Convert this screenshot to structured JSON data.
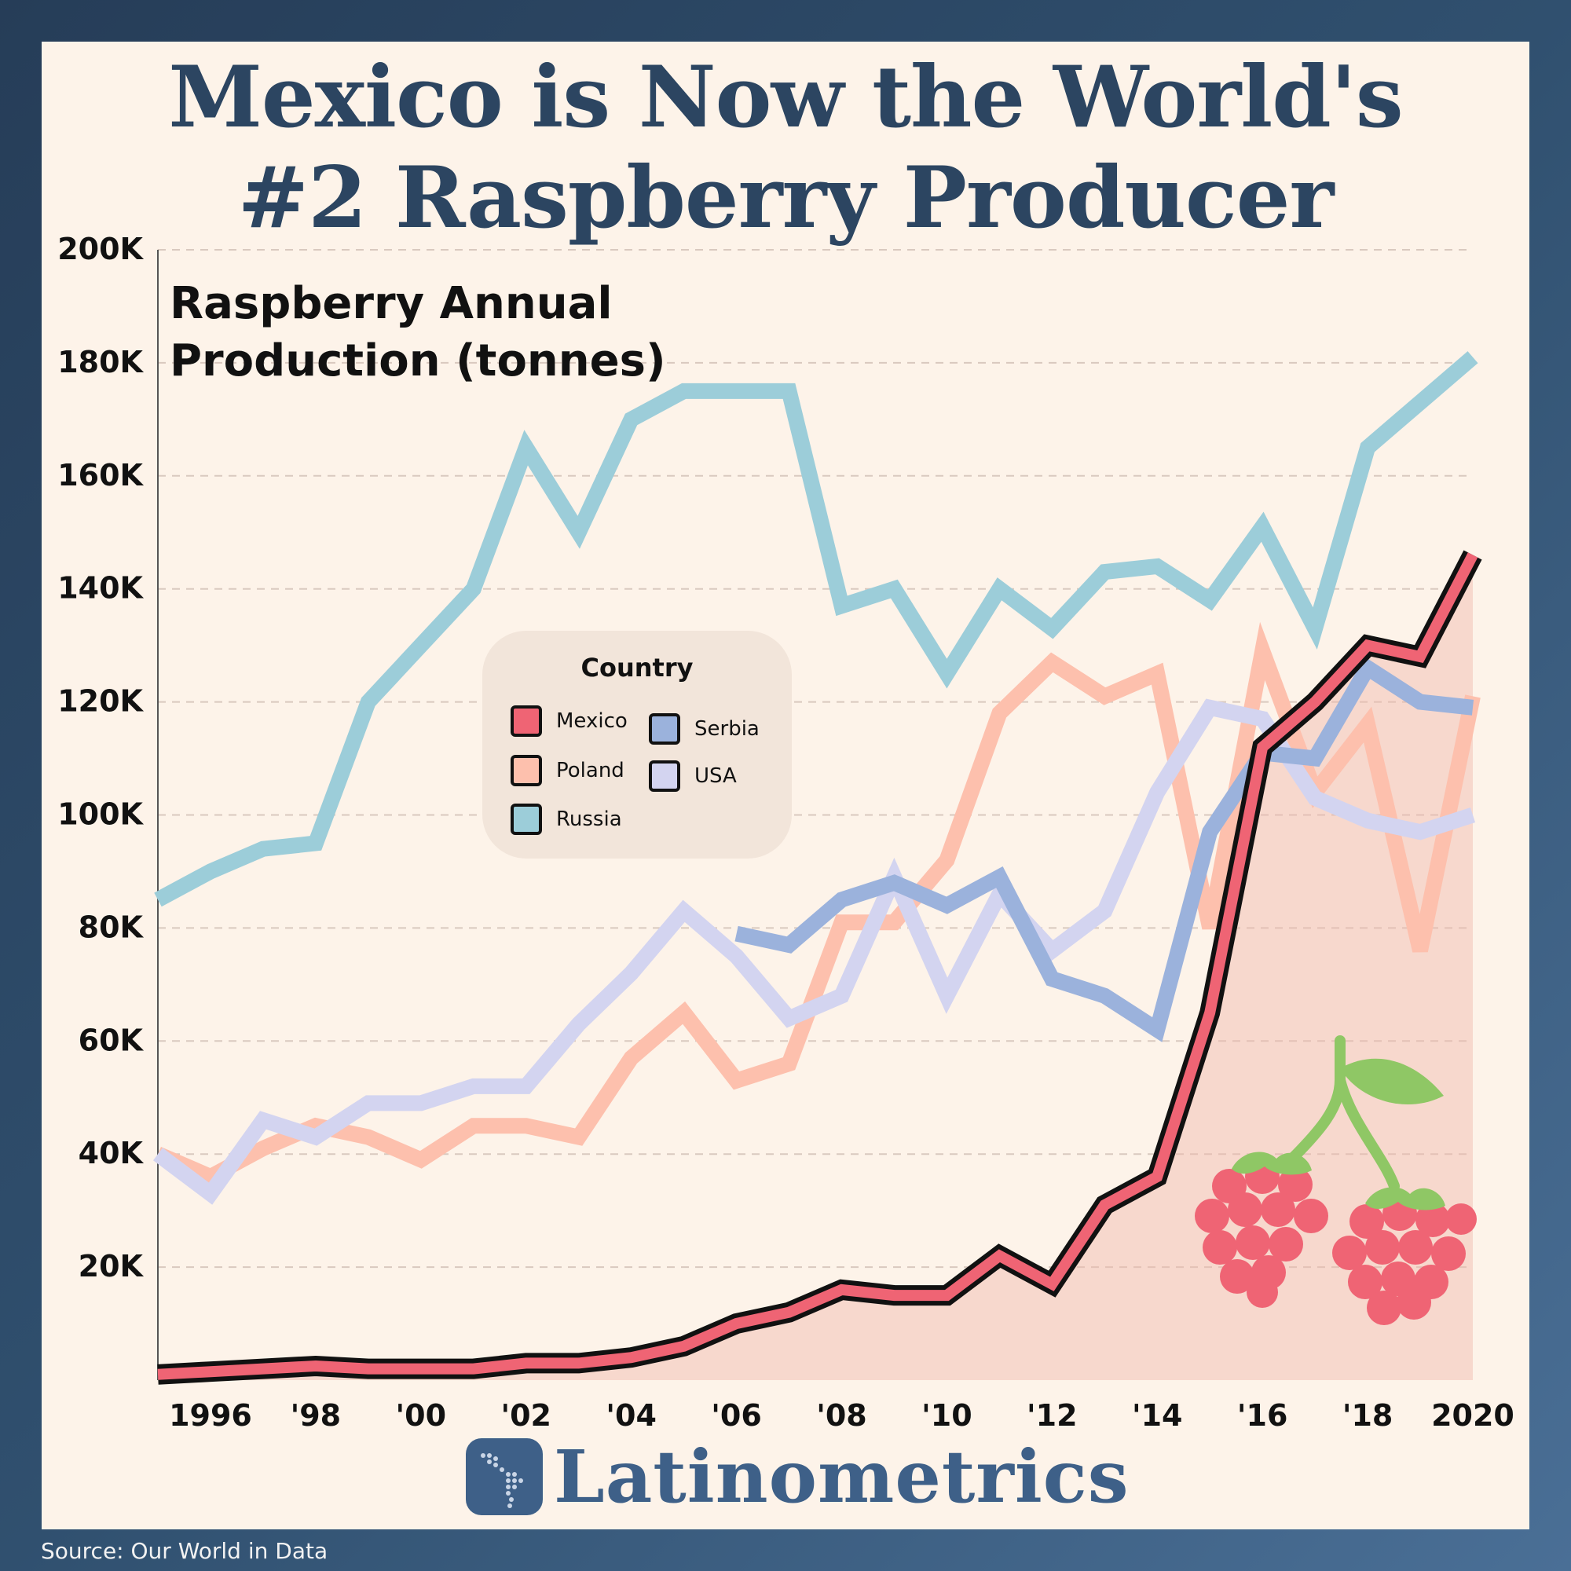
{
  "title_line1": "Mexico is Now the World's",
  "title_line2": "#2 Raspberry Producer",
  "brand": "Latinometrics",
  "source": "Source: Our World in Data",
  "chart_data": {
    "type": "line",
    "title": "Mexico is Now the World's #2 Raspberry Producer",
    "subtitle_line1": "Raspberry Annual",
    "subtitle_line2": "Production (tonnes)",
    "xlabel": "",
    "ylabel": "",
    "xlim": [
      1995,
      2020
    ],
    "ylim": [
      0,
      200000
    ],
    "grid": true,
    "y_ticks": [
      20000,
      40000,
      60000,
      80000,
      100000,
      120000,
      140000,
      160000,
      180000,
      200000
    ],
    "y_tick_labels": [
      "20K",
      "40K",
      "60K",
      "80K",
      "100K",
      "120K",
      "140K",
      "160K",
      "180K",
      "200K"
    ],
    "x_ticks": [
      1996,
      1998,
      2000,
      2002,
      2004,
      2006,
      2008,
      2010,
      2012,
      2014,
      2016,
      2018,
      2020
    ],
    "x_tick_labels": [
      "1996",
      "'98",
      "'00",
      "'02",
      "'04",
      "'06",
      "'08",
      "'10",
      "'12",
      "'14",
      "'16",
      "'18",
      "2020"
    ],
    "legend": {
      "title": "Country",
      "placement": "upper-center"
    },
    "series": [
      {
        "name": "Russia",
        "color": "#9ccdd9",
        "x": [
          1995,
          1996,
          1997,
          1998,
          1999,
          2000,
          2001,
          2002,
          2003,
          2004,
          2005,
          2006,
          2007,
          2008,
          2009,
          2010,
          2011,
          2012,
          2013,
          2014,
          2015,
          2016,
          2017,
          2018,
          2019,
          2020
        ],
        "y": [
          85000,
          90000,
          94000,
          95000,
          120000,
          130000,
          140000,
          165000,
          150000,
          170000,
          175000,
          175000,
          175000,
          137000,
          140000,
          125000,
          140000,
          133000,
          143000,
          144000,
          138000,
          151000,
          133000,
          165000,
          173000,
          181000
        ]
      },
      {
        "name": "Poland",
        "color": "#fdc0ad",
        "x": [
          1995,
          1996,
          1997,
          1998,
          1999,
          2000,
          2001,
          2002,
          2003,
          2004,
          2005,
          2006,
          2007,
          2008,
          2009,
          2010,
          2011,
          2012,
          2013,
          2014,
          2015,
          2016,
          2017,
          2018,
          2019,
          2020
        ],
        "y": [
          40000,
          36000,
          41000,
          45000,
          43000,
          39000,
          45000,
          45000,
          43000,
          57000,
          65000,
          53000,
          56000,
          81000,
          81000,
          92000,
          118000,
          127000,
          121000,
          125000,
          80000,
          129000,
          104000,
          116000,
          76000,
          121000
        ]
      },
      {
        "name": "USA",
        "color": "#d3d4f0",
        "x": [
          1995,
          1996,
          1997,
          1998,
          1999,
          2000,
          2001,
          2002,
          2003,
          2004,
          2005,
          2006,
          2007,
          2008,
          2009,
          2010,
          2011,
          2012,
          2013,
          2014,
          2015,
          2016,
          2017,
          2018,
          2019,
          2020
        ],
        "y": [
          40000,
          33000,
          46000,
          43000,
          49000,
          49000,
          52000,
          52000,
          63000,
          72000,
          83000,
          75000,
          64000,
          68000,
          89000,
          68000,
          86000,
          76000,
          83000,
          104000,
          119000,
          117000,
          103000,
          99000,
          97000,
          100000
        ]
      },
      {
        "name": "Serbia",
        "color": "#9bb2dc",
        "x": [
          2006,
          2007,
          2008,
          2009,
          2010,
          2011,
          2012,
          2013,
          2014,
          2015,
          2016,
          2017,
          2018,
          2019,
          2020
        ],
        "y": [
          79000,
          77000,
          85000,
          88000,
          84000,
          89000,
          71000,
          68000,
          62000,
          97000,
          111000,
          110000,
          126000,
          120000,
          119000
        ]
      },
      {
        "name": "Mexico",
        "color": "#ef6474",
        "x": [
          1995,
          1996,
          1997,
          1998,
          1999,
          2000,
          2001,
          2002,
          2003,
          2004,
          2005,
          2006,
          2007,
          2008,
          2009,
          2010,
          2011,
          2012,
          2013,
          2014,
          2015,
          2016,
          2017,
          2018,
          2019,
          2020
        ],
        "y": [
          1000,
          1500,
          2000,
          2500,
          2000,
          2000,
          2000,
          3000,
          3000,
          4000,
          6000,
          10000,
          12000,
          16000,
          15000,
          15000,
          22000,
          17000,
          31000,
          36000,
          65000,
          112000,
          120000,
          130000,
          128000,
          146000
        ]
      }
    ]
  }
}
